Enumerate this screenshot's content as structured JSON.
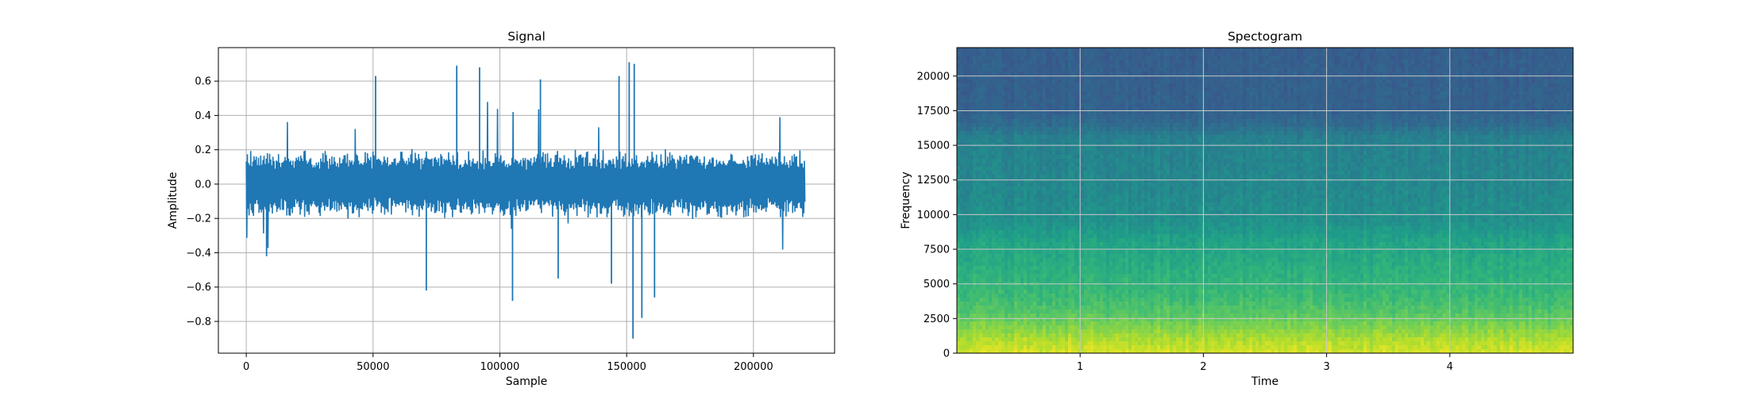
{
  "chart_data": [
    {
      "type": "line",
      "title": "Signal",
      "xlabel": "Sample",
      "ylabel": "Amplitude",
      "xlim": [
        -11000,
        232000
      ],
      "ylim": [
        -0.985,
        0.795
      ],
      "x_ticks": [
        0,
        50000,
        100000,
        150000,
        200000
      ],
      "x_tick_labels": [
        "0",
        "50000",
        "100000",
        "150000",
        "200000"
      ],
      "y_ticks": [
        -0.8,
        -0.6,
        -0.4,
        -0.2,
        0.0,
        0.2,
        0.4,
        0.6
      ],
      "y_tick_labels": [
        "−0.8",
        "−0.6",
        "−0.4",
        "−0.2",
        "0.0",
        "0.2",
        "0.4",
        "0.6"
      ],
      "grid": true,
      "series": [
        {
          "color": "#1f77b4",
          "x_range": [
            0,
            220500
          ],
          "peaks": [
            {
              "x": 83000,
              "value": 0.69
            },
            {
              "x": 92000,
              "value": 0.68
            },
            {
              "x": 151000,
              "value": 0.71
            },
            {
              "x": 153000,
              "value": 0.7
            },
            {
              "x": 51000,
              "value": 0.63
            },
            {
              "x": 116000,
              "value": 0.61
            },
            {
              "x": 147000,
              "value": 0.63
            },
            {
              "x": 152500,
              "value": -0.9
            },
            {
              "x": 156000,
              "value": -0.78
            },
            {
              "x": 161000,
              "value": -0.66
            },
            {
              "x": 105000,
              "value": -0.68
            },
            {
              "x": 71000,
              "value": -0.62
            },
            {
              "x": 123000,
              "value": -0.55
            },
            {
              "x": 144000,
              "value": -0.58
            },
            {
              "x": 8000,
              "value": -0.42
            }
          ]
        }
      ]
    },
    {
      "type": "heatmap",
      "title": "Spectogram",
      "xlabel": "Time",
      "ylabel": "Frequency",
      "xlim": [
        0,
        5.0
      ],
      "ylim": [
        0,
        22050
      ],
      "x_ticks": [
        1,
        2,
        3,
        4
      ],
      "x_tick_labels": [
        "1",
        "2",
        "3",
        "4"
      ],
      "y_ticks": [
        0,
        2500,
        5000,
        7500,
        10000,
        12500,
        15000,
        17500,
        20000
      ],
      "y_tick_labels": [
        "0",
        "2500",
        "5000",
        "7500",
        "10000",
        "12500",
        "15000",
        "17500",
        "20000"
      ],
      "grid": true,
      "colormap": "viridis",
      "color_stops": [
        "#3b528b",
        "#31688e",
        "#26828e",
        "#1f9e89",
        "#35b779",
        "#6ece58",
        "#b5de2b",
        "#fde725"
      ],
      "frequency_profile": [
        {
          "freq": 0,
          "level": 0.92
        },
        {
          "freq": 800,
          "level": 0.86
        },
        {
          "freq": 1600,
          "level": 0.78
        },
        {
          "freq": 2800,
          "level": 0.66
        },
        {
          "freq": 4200,
          "level": 0.58
        },
        {
          "freq": 6000,
          "level": 0.52
        },
        {
          "freq": 8000,
          "level": 0.46
        },
        {
          "freq": 9500,
          "level": 0.36
        },
        {
          "freq": 11500,
          "level": 0.32
        },
        {
          "freq": 13500,
          "level": 0.3
        },
        {
          "freq": 15500,
          "level": 0.28
        },
        {
          "freq": 16500,
          "level": 0.16
        },
        {
          "freq": 17500,
          "level": 0.1
        },
        {
          "freq": 22050,
          "level": 0.08
        }
      ]
    }
  ]
}
